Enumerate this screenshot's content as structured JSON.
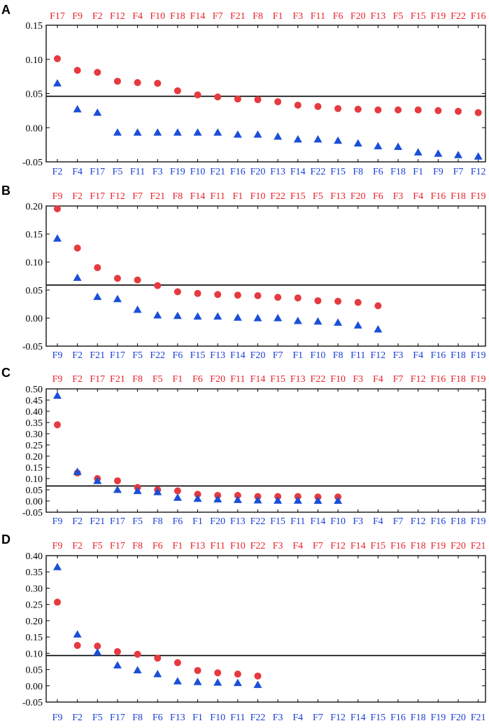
{
  "colors": {
    "red_series": "#e63a3f",
    "blue_series": "#1a4fd8",
    "top_label": "#e8222a",
    "bottom_label": "#1a3fd6"
  },
  "chart_data": [
    {
      "panel": "A",
      "type": "scatter",
      "ylim": [
        -0.05,
        0.15
      ],
      "yticks": [
        "0.15",
        "0.10",
        "0.05",
        "0.00",
        "-0.05"
      ],
      "yvalues": [
        0.15,
        0.1,
        0.05,
        0.0,
        -0.05
      ],
      "hline": 0.046,
      "red_categories": [
        "F17",
        "F9",
        "F2",
        "F12",
        "F4",
        "F10",
        "F18",
        "F14",
        "F7",
        "F21",
        "F8",
        "F1",
        "F3",
        "F11",
        "F6",
        "F20",
        "F13",
        "F5",
        "F15",
        "F19",
        "F22",
        "F16"
      ],
      "red_values": [
        0.101,
        0.084,
        0.081,
        0.068,
        0.066,
        0.065,
        0.054,
        0.048,
        0.045,
        0.042,
        0.041,
        0.038,
        0.033,
        0.031,
        0.028,
        0.027,
        0.026,
        0.026,
        0.026,
        0.025,
        0.024,
        0.022
      ],
      "blue_categories": [
        "F2",
        "F4",
        "F17",
        "F5",
        "F11",
        "F3",
        "F19",
        "F10",
        "F21",
        "F16",
        "F20",
        "F13",
        "F14",
        "F22",
        "F15",
        "F8",
        "F6",
        "F18",
        "F1",
        "F9",
        "F7",
        "F12"
      ],
      "blue_values": [
        0.065,
        0.027,
        0.022,
        -0.007,
        -0.007,
        -0.007,
        -0.007,
        -0.007,
        -0.007,
        -0.01,
        -0.01,
        -0.013,
        -0.017,
        -0.017,
        -0.019,
        -0.023,
        -0.027,
        -0.028,
        -0.036,
        -0.038,
        -0.04,
        -0.042
      ]
    },
    {
      "panel": "B",
      "type": "scatter",
      "ylim": [
        -0.05,
        0.2
      ],
      "yticks": [
        "0.20",
        "0.15",
        "0.10",
        "0.05",
        "0.00",
        "-0.05"
      ],
      "yvalues": [
        0.2,
        0.15,
        0.1,
        0.05,
        0.0,
        -0.05
      ],
      "hline": 0.059,
      "red_categories": [
        "F9",
        "F2",
        "F17",
        "F12",
        "F7",
        "F21",
        "F8",
        "F14",
        "F11",
        "F1",
        "F10",
        "F22",
        "F15",
        "F5",
        "F13",
        "F20",
        "F6",
        "F3",
        "F4",
        "F16",
        "F18",
        "F19"
      ],
      "red_values": [
        0.195,
        0.125,
        0.09,
        0.071,
        0.068,
        0.058,
        0.047,
        0.044,
        0.042,
        0.041,
        0.04,
        0.037,
        0.036,
        0.031,
        0.03,
        0.028,
        0.022
      ],
      "blue_categories": [
        "F9",
        "F2",
        "F21",
        "F17",
        "F5",
        "F22",
        "F6",
        "F15",
        "F13",
        "F14",
        "F20",
        "F7",
        "F1",
        "F10",
        "F8",
        "F11",
        "F12",
        "F3",
        "F4",
        "F16",
        "F18",
        "F19"
      ],
      "blue_values": [
        0.142,
        0.072,
        0.038,
        0.034,
        0.015,
        0.005,
        0.004,
        0.003,
        0.003,
        0.001,
        0.0,
        0.0,
        -0.005,
        -0.006,
        -0.008,
        -0.013,
        -0.02
      ]
    },
    {
      "panel": "C",
      "type": "scatter",
      "ylim": [
        -0.05,
        0.5
      ],
      "yticks": [
        "0.50",
        "0.45",
        "0.40",
        "0.35",
        "0.30",
        "0.25",
        "0.20",
        "0.15",
        "0.10",
        "0.05",
        "0.00",
        "-0.05"
      ],
      "yvalues": [
        0.5,
        0.45,
        0.4,
        0.35,
        0.3,
        0.25,
        0.2,
        0.15,
        0.1,
        0.05,
        0.0,
        -0.05
      ],
      "hline": 0.067,
      "red_categories": [
        "F9",
        "F2",
        "F17",
        "F21",
        "F8",
        "F5",
        "F1",
        "F6",
        "F20",
        "F11",
        "F14",
        "F15",
        "F13",
        "F22",
        "F10",
        "F3",
        "F4",
        "F7",
        "F12",
        "F16",
        "F18",
        "F19"
      ],
      "red_values": [
        0.34,
        0.125,
        0.1,
        0.09,
        0.06,
        0.05,
        0.045,
        0.03,
        0.025,
        0.025,
        0.02,
        0.02,
        0.02,
        0.018,
        0.018
      ],
      "blue_categories": [
        "F9",
        "F2",
        "F21",
        "F17",
        "F5",
        "F8",
        "F6",
        "F1",
        "F20",
        "F13",
        "F22",
        "F15",
        "F11",
        "F14",
        "F10",
        "F3",
        "F4",
        "F7",
        "F12",
        "F16",
        "F18",
        "F19"
      ],
      "blue_values": [
        0.47,
        0.13,
        0.09,
        0.05,
        0.045,
        0.04,
        0.015,
        0.01,
        0.008,
        0.005,
        0.003,
        0.002,
        0.002,
        0.001,
        0.001
      ]
    },
    {
      "panel": "D",
      "type": "scatter",
      "ylim": [
        -0.05,
        0.4
      ],
      "yticks": [
        "0.40",
        "0.35",
        "0.30",
        "0.25",
        "0.20",
        "0.15",
        "0.10",
        "0.05",
        "0.00",
        "-0.05"
      ],
      "yvalues": [
        0.4,
        0.35,
        0.3,
        0.25,
        0.2,
        0.15,
        0.1,
        0.05,
        0.0,
        -0.05
      ],
      "hline": 0.093,
      "red_categories": [
        "F9",
        "F2",
        "F5",
        "F17",
        "F8",
        "F6",
        "F1",
        "F13",
        "F11",
        "F10",
        "F22",
        "F3",
        "F4",
        "F7",
        "F12",
        "F14",
        "F15",
        "F16",
        "F18",
        "F19",
        "F20",
        "F21"
      ],
      "red_values": [
        0.257,
        0.124,
        0.122,
        0.105,
        0.097,
        0.085,
        0.071,
        0.047,
        0.04,
        0.036,
        0.03
      ],
      "blue_categories": [
        "F9",
        "F2",
        "F5",
        "F17",
        "F8",
        "F6",
        "F13",
        "F1",
        "F10",
        "F11",
        "F22",
        "F3",
        "F4",
        "F7",
        "F12",
        "F14",
        "F15",
        "F16",
        "F18",
        "F19",
        "F20",
        "F21"
      ],
      "blue_values": [
        0.365,
        0.158,
        0.103,
        0.063,
        0.048,
        0.036,
        0.014,
        0.012,
        0.01,
        0.009,
        0.003
      ]
    }
  ]
}
